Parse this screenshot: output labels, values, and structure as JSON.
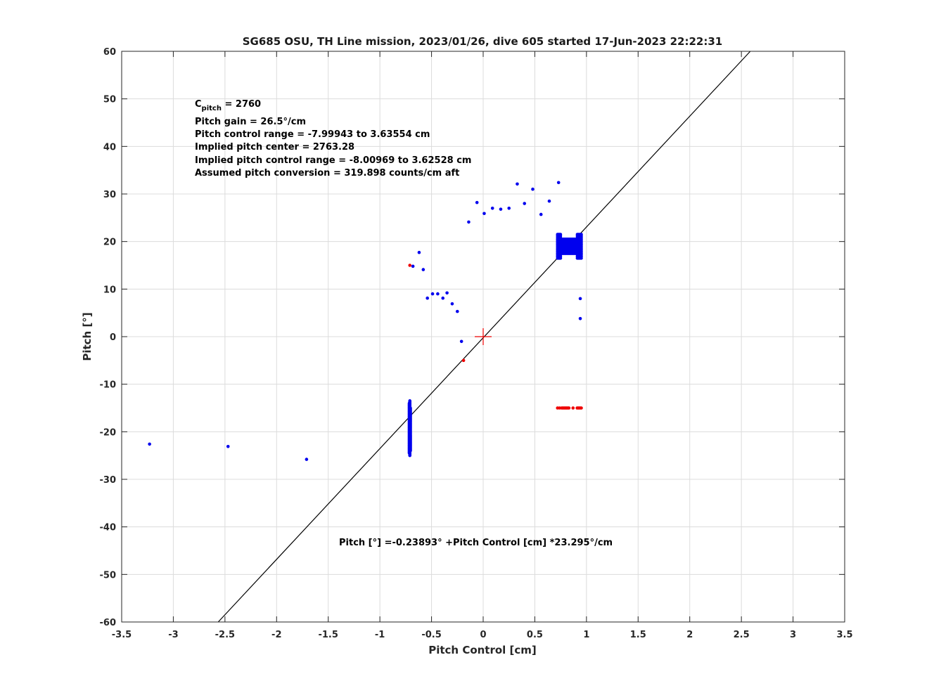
{
  "chart_data": {
    "type": "scatter",
    "title": "SG685 OSU, TH Line mission, 2023/01/26, dive 605 started 17-Jun-2023 22:22:31",
    "xlabel": "Pitch Control [cm]",
    "ylabel": "Pitch [°]",
    "xlim": [
      -3.5,
      3.5
    ],
    "ylim": [
      -60,
      60
    ],
    "xticks": [
      -3.5,
      -3,
      -2.5,
      -2,
      -1.5,
      -1,
      -0.5,
      0,
      0.5,
      1,
      1.5,
      2,
      2.5,
      3,
      3.5
    ],
    "xtick_labels": [
      "-3.5",
      "-3",
      "-2.5",
      "-2",
      "-1.5",
      "-1",
      "-0.5",
      "0",
      "0.5",
      "1",
      "1.5",
      "2",
      "2.5",
      "3",
      "3.5"
    ],
    "yticks": [
      -60,
      -50,
      -40,
      -30,
      -20,
      -10,
      0,
      10,
      20,
      30,
      40,
      50,
      60
    ],
    "ytick_labels": [
      "-60",
      "-50",
      "-40",
      "-30",
      "-20",
      "-10",
      "0",
      "10",
      "20",
      "30",
      "40",
      "50",
      "60"
    ],
    "grid": true,
    "colors": {
      "good": "#0000ee",
      "bad": "#ee0000",
      "fit": "#000000",
      "center": "#ee0000"
    },
    "series": [
      {
        "color": "#0000ee",
        "points": [
          [
            -3.23,
            -22.6
          ],
          [
            -2.47,
            -23.1
          ],
          [
            -1.71,
            -25.8
          ],
          [
            -0.62,
            17.7
          ],
          [
            -0.58,
            14.1
          ],
          [
            -0.68,
            14.8
          ],
          [
            -0.54,
            8.1
          ],
          [
            -0.49,
            9.0
          ],
          [
            -0.44,
            9.0
          ],
          [
            -0.39,
            8.1
          ],
          [
            -0.35,
            9.2
          ],
          [
            -0.3,
            6.9
          ],
          [
            -0.25,
            5.3
          ],
          [
            -0.21,
            -1.0
          ],
          [
            -0.14,
            24.1
          ],
          [
            -0.06,
            28.2
          ],
          [
            0.01,
            25.9
          ],
          [
            0.09,
            27.0
          ],
          [
            0.17,
            26.8
          ],
          [
            0.25,
            27.0
          ],
          [
            0.33,
            32.1
          ],
          [
            0.4,
            28.0
          ],
          [
            0.48,
            31.0
          ],
          [
            0.56,
            25.7
          ],
          [
            0.64,
            28.5
          ],
          [
            0.73,
            32.4
          ],
          [
            0.94,
            8.0
          ],
          [
            0.94,
            3.8
          ]
        ],
        "vertical_clusters": [
          {
            "x": -0.71,
            "y_min": -25.0,
            "y_max": -13.5
          },
          {
            "x": -0.715,
            "y_min": -24.5,
            "y_max": -14.0
          },
          {
            "x": -0.705,
            "y_min": -24.0,
            "y_max": -15.0
          }
        ],
        "blob": {
          "x_min": 0.72,
          "x_max": 0.95,
          "y_min": 16.5,
          "y_max": 21.5
        }
      },
      {
        "color": "#ee0000",
        "points": [
          [
            -0.71,
            15.0
          ],
          [
            -0.19,
            -5.0
          ],
          [
            0.72,
            -15.0
          ],
          [
            0.74,
            -15.0
          ],
          [
            0.76,
            -15.0
          ],
          [
            0.77,
            -15.0
          ],
          [
            0.78,
            -15.0
          ],
          [
            0.79,
            -15.0
          ],
          [
            0.8,
            -15.0
          ],
          [
            0.81,
            -15.0
          ],
          [
            0.82,
            -15.0
          ],
          [
            0.83,
            -15.0
          ],
          [
            0.87,
            -15.0
          ],
          [
            0.91,
            -15.0
          ],
          [
            0.92,
            -15.0
          ],
          [
            0.93,
            -15.0
          ],
          [
            0.94,
            -15.0
          ],
          [
            0.95,
            -15.0
          ]
        ]
      }
    ],
    "fit_line": {
      "intercept": -0.23893,
      "slope": 23.295
    },
    "center_marker": [
      0,
      0
    ],
    "annotations": {
      "cpitch_main": "C",
      "cpitch_sub": "pitch",
      "cpitch_value": " = 2760",
      "lines": [
        "Pitch gain = 26.5°/cm",
        "Pitch control range = -7.99943 to 3.63554 cm",
        "Implied pitch center = 2763.28",
        "Implied pitch control range = -8.00969 to 3.62528 cm",
        "Assumed pitch conversion = 319.898 counts/cm aft"
      ],
      "fit_equation": "Pitch [°] =-0.23893° +Pitch Control [cm] *23.295°/cm"
    }
  }
}
